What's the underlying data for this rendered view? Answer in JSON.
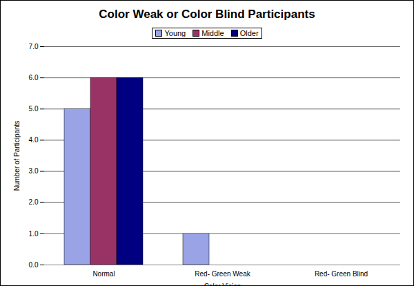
{
  "chart_data": {
    "type": "bar",
    "title": "Color Weak or Color Blind Participants",
    "x_label": "Color Vision",
    "y_label": "Number of Participants",
    "categories": [
      "Normal",
      "Red- Green Weak",
      "Red- Green Blind"
    ],
    "series": [
      {
        "name": "Young",
        "color": "#99a3e6",
        "values": [
          5,
          1,
          0
        ]
      },
      {
        "name": "Middle",
        "color": "#993366",
        "values": [
          6,
          0,
          0
        ]
      },
      {
        "name": "Older",
        "color": "#000080",
        "values": [
          6,
          0,
          0
        ]
      }
    ],
    "ylim": [
      0,
      7
    ],
    "yticks": [
      0,
      1,
      2,
      3,
      4,
      5,
      6,
      7
    ],
    "grid": true,
    "legend": "top"
  }
}
